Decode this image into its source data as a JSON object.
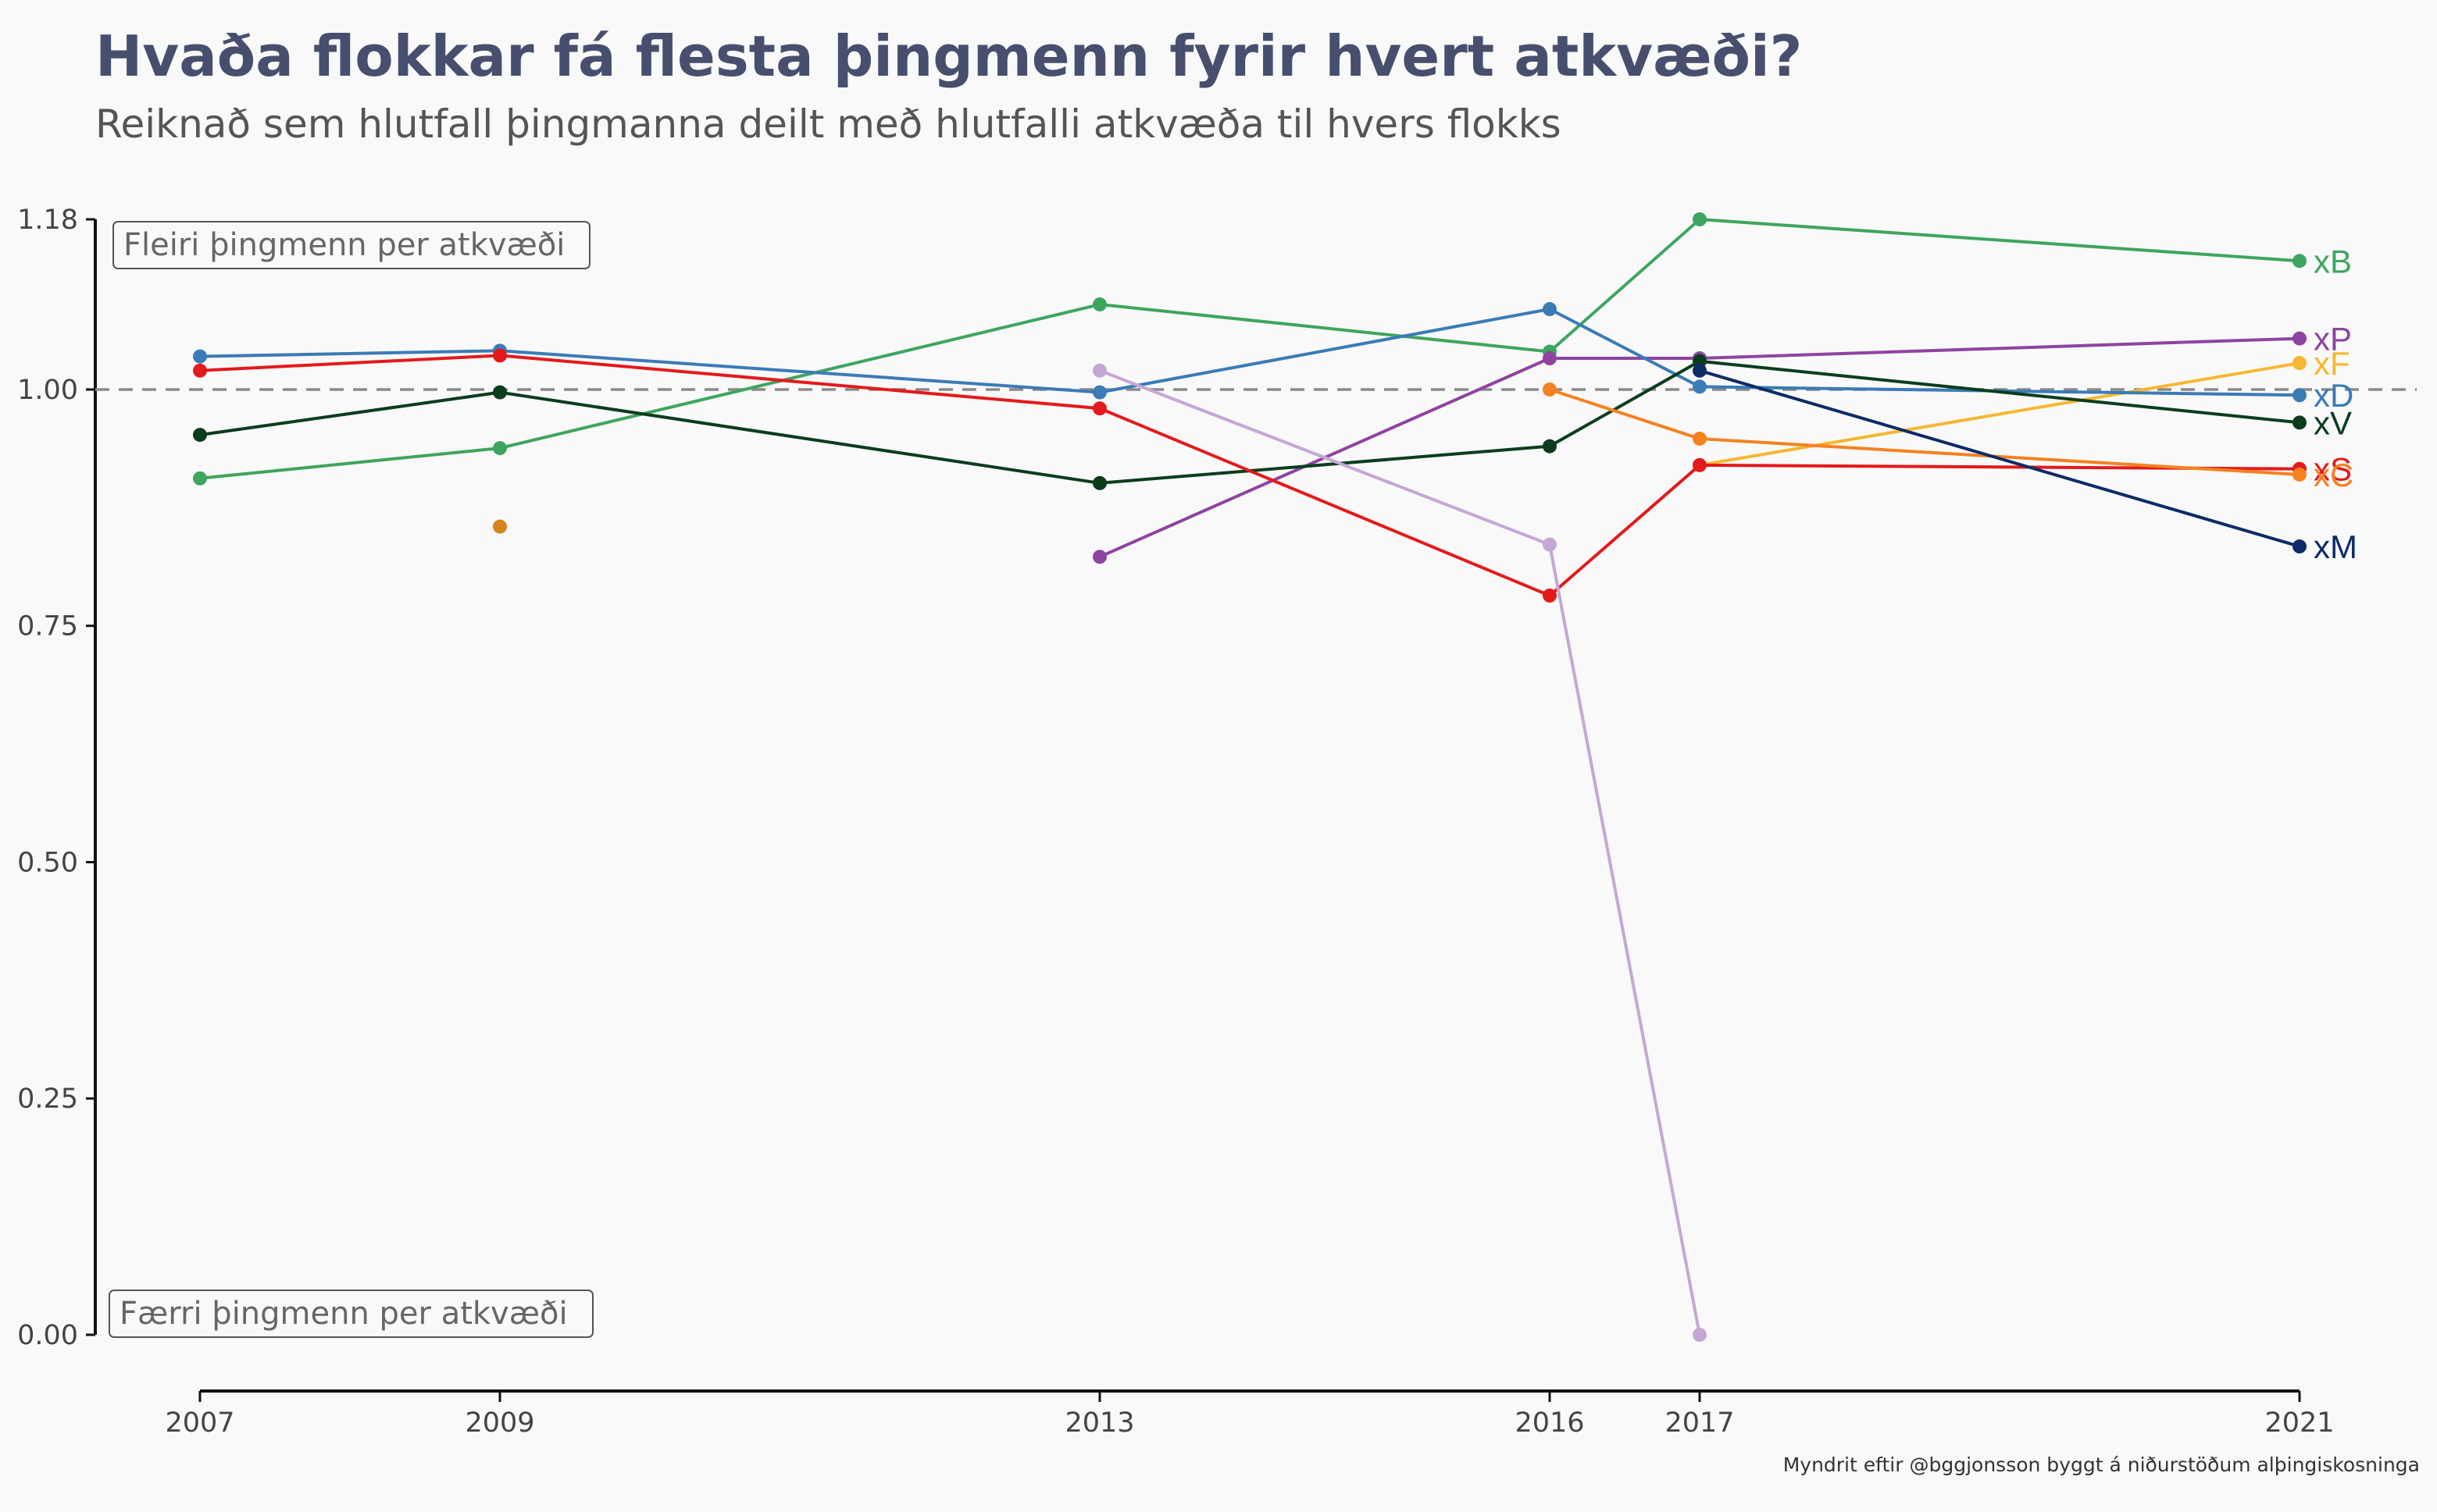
{
  "chart_data": {
    "type": "line",
    "title": "Hvaða flokkar fá flesta þingmenn fyrir hvert atkvæði?",
    "subtitle": "Reiknað sem hlutfall þingmanna deilt með hlutfalli atkvæða til hvers flokks",
    "caption": "Myndrit eftir @bggjonsson byggt á niðurstöðum alþingiskosninga",
    "xlim": [
      2007,
      2021
    ],
    "ylim": [
      0,
      1.18
    ],
    "x_ticks": [
      "2007",
      "2009",
      "2013",
      "2016",
      "2017",
      "2021"
    ],
    "x_tick_values": [
      2007,
      2009,
      2013,
      2016,
      2017,
      2021
    ],
    "y_ticks": [
      "0.00",
      "0.25",
      "0.50",
      "0.75",
      "1.00",
      "1.18"
    ],
    "y_tick_values": [
      0,
      0.25,
      0.5,
      0.75,
      1.0,
      1.18
    ],
    "reference_line": 1.0,
    "grid": false,
    "annotations": {
      "top": "Fleiri þingmenn per atkvæði",
      "bottom": "Færri þingmenn per atkvæði"
    },
    "series": [
      {
        "name": "xB",
        "color": "#3ea55f",
        "points": [
          [
            2007,
            0.906
          ],
          [
            2009,
            0.938
          ],
          [
            2013,
            1.09
          ],
          [
            2016,
            1.04
          ],
          [
            2017,
            1.18
          ],
          [
            2021,
            1.136
          ]
        ]
      },
      {
        "name": "xP",
        "color": "#8e44a0",
        "points": [
          [
            2013,
            0.823
          ],
          [
            2016,
            1.033
          ],
          [
            2017,
            1.033
          ],
          [
            2021,
            1.054
          ]
        ]
      },
      {
        "name": "xF",
        "color": "#f7b731",
        "points": [
          [
            2017,
            0.92
          ],
          [
            2021,
            1.028
          ]
        ]
      },
      {
        "name": "xD",
        "color": "#3b7bb6",
        "points": [
          [
            2007,
            1.035
          ],
          [
            2009,
            1.041
          ],
          [
            2013,
            0.997
          ],
          [
            2016,
            1.085
          ],
          [
            2017,
            1.003
          ],
          [
            2021,
            0.994
          ]
        ]
      },
      {
        "name": "xV",
        "color": "#0b3d1c",
        "points": [
          [
            2007,
            0.952
          ],
          [
            2009,
            0.997
          ],
          [
            2013,
            0.901
          ],
          [
            2016,
            0.94
          ],
          [
            2017,
            1.03
          ],
          [
            2021,
            0.965
          ]
        ]
      },
      {
        "name": "xS",
        "color": "#e31a1c",
        "points": [
          [
            2007,
            1.02
          ],
          [
            2009,
            1.036
          ],
          [
            2013,
            0.98
          ],
          [
            2016,
            0.782
          ],
          [
            2017,
            0.92
          ],
          [
            2021,
            0.916
          ]
        ]
      },
      {
        "name": "xC",
        "color": "#f58220",
        "points": [
          [
            2016,
            1.0
          ],
          [
            2017,
            0.948
          ],
          [
            2021,
            0.91
          ]
        ]
      },
      {
        "name": "xM",
        "color": "#0d2b66",
        "points": [
          [
            2017,
            1.02
          ],
          [
            2021,
            0.834
          ]
        ]
      },
      {
        "name": "",
        "color": "#c4a8d4",
        "points": [
          [
            2013,
            1.02
          ],
          [
            2016,
            0.836
          ],
          [
            2017,
            0.0
          ]
        ]
      },
      {
        "name": "",
        "color": "#d4861a",
        "points": [
          [
            2009,
            0.855
          ]
        ]
      }
    ]
  }
}
